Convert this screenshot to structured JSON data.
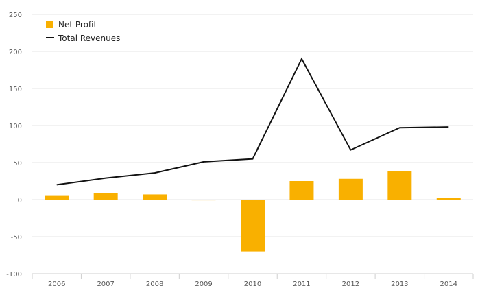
{
  "chart_data": {
    "type": "bar",
    "categories": [
      "2006",
      "2007",
      "2008",
      "2009",
      "2010",
      "2011",
      "2012",
      "2013",
      "2014"
    ],
    "series": [
      {
        "name": "Net Profit",
        "type": "bar",
        "color": "#f9b000",
        "values": [
          5,
          9,
          7,
          -1,
          -70,
          25,
          28,
          38,
          2
        ]
      },
      {
        "name": "Total Revenues",
        "type": "line",
        "color": "#111111",
        "values": [
          20,
          29,
          36,
          51,
          55,
          190,
          67,
          97,
          98
        ]
      }
    ],
    "ylim": [
      -100,
      250
    ],
    "yticks": [
      250,
      200,
      150,
      100,
      50,
      0,
      -50,
      -100
    ],
    "ytick_labels": [
      "250",
      "200",
      "150",
      "100",
      "50",
      "0",
      "-50",
      "-100"
    ],
    "grid": true,
    "legend": {
      "position": "top-left",
      "items": [
        {
          "label": "Net Profit",
          "marker": "square",
          "color": "#f9b000"
        },
        {
          "label": "Total Revenues",
          "marker": "line",
          "color": "#111111"
        }
      ]
    }
  }
}
